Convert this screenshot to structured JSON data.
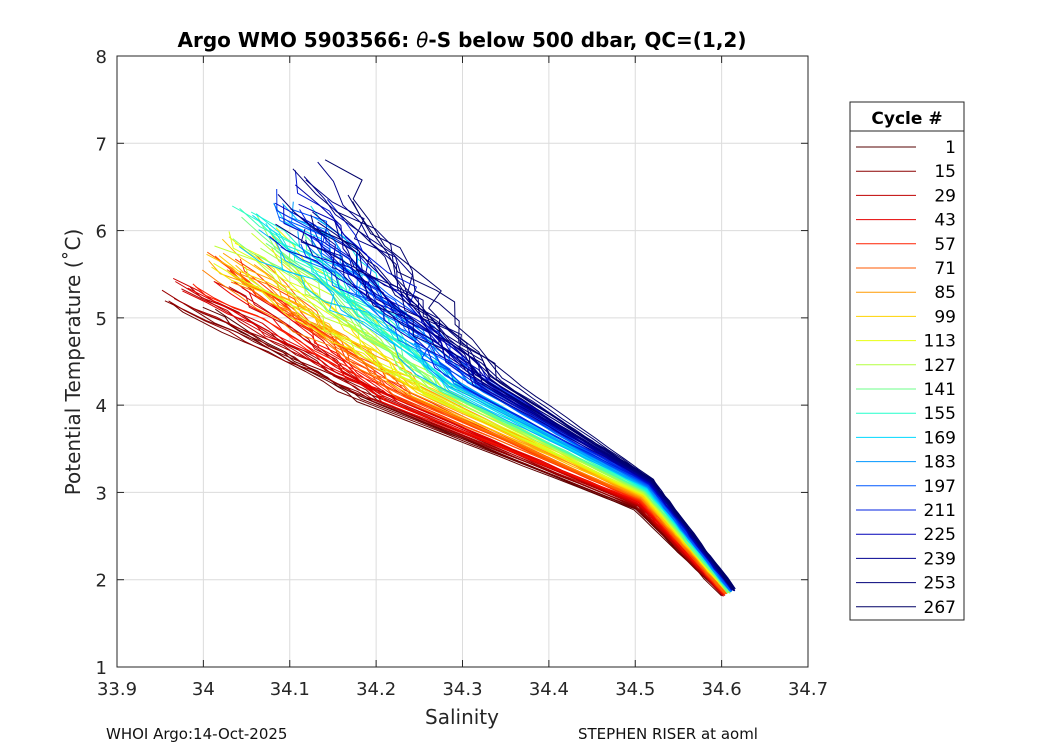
{
  "chart_data": {
    "type": "line",
    "title_prefix": "Argo WMO 5903566: ",
    "title_theta": "θ",
    "title_suffix": "-S below 500 dbar,  QC=(1,2)",
    "xlabel": "Salinity",
    "ylabel": "Potential Temperature (˚C)",
    "xlim": [
      33.9,
      34.7
    ],
    "ylim": [
      1,
      8
    ],
    "xticks": [
      "33.9",
      "34",
      "34.1",
      "34.2",
      "34.3",
      "34.4",
      "34.5",
      "34.6",
      "34.7"
    ],
    "yticks": [
      "1",
      "2",
      "3",
      "4",
      "5",
      "6",
      "7",
      "8"
    ],
    "grid": true,
    "legend": {
      "title": "Cycle #",
      "placement": "right",
      "entries": [
        {
          "label": "1",
          "color": "#550000"
        },
        {
          "label": "15",
          "color": "#8b0000"
        },
        {
          "label": "29",
          "color": "#bf0000"
        },
        {
          "label": "43",
          "color": "#e50000"
        },
        {
          "label": "57",
          "color": "#ff2000"
        },
        {
          "label": "71",
          "color": "#ff5a00"
        },
        {
          "label": "85",
          "color": "#ff9a00"
        },
        {
          "label": "99",
          "color": "#ffd200"
        },
        {
          "label": "113",
          "color": "#e8ff10"
        },
        {
          "label": "127",
          "color": "#b4ff40"
        },
        {
          "label": "141",
          "color": "#6cff8a"
        },
        {
          "label": "155",
          "color": "#22ffcc"
        },
        {
          "label": "169",
          "color": "#00d8ff"
        },
        {
          "label": "183",
          "color": "#0096ff"
        },
        {
          "label": "197",
          "color": "#0058ff"
        },
        {
          "label": "211",
          "color": "#0020e0"
        },
        {
          "label": "225",
          "color": "#0000b8"
        },
        {
          "label": "239",
          "color": "#000090"
        },
        {
          "label": "253",
          "color": "#00007a"
        },
        {
          "label": "267",
          "color": "#000066"
        }
      ]
    },
    "series_envelope": {
      "description": "theta-S profiles per cycle; early cycles cold/fresh, later cycles warmer/saltier",
      "early": {
        "s_top": 33.97,
        "t_top": 5.1,
        "s_bottom": 34.6,
        "t_bottom": 1.82
      },
      "late": {
        "s_top": 34.14,
        "t_top": 7.0,
        "s_bottom": 34.615,
        "t_bottom": 1.9
      },
      "cycles": 267
    }
  },
  "footer": {
    "left": "WHOI Argo:14-Oct-2025",
    "right": "STEPHEN RISER at aoml"
  }
}
